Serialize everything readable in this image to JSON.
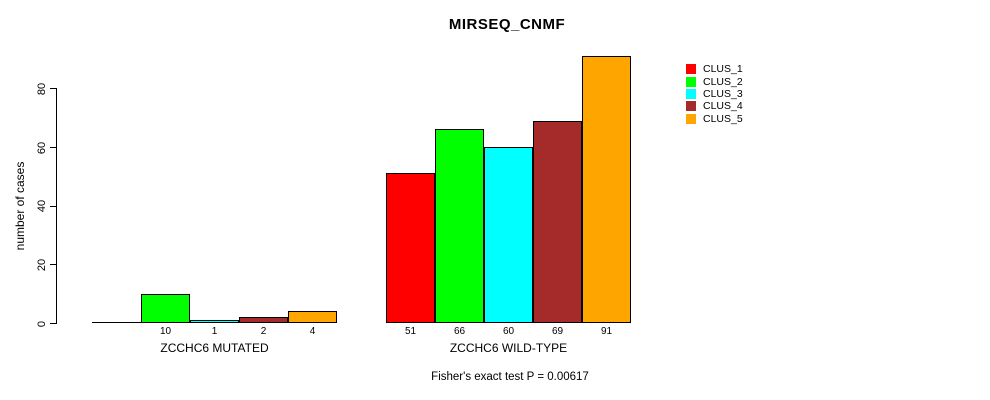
{
  "title": "MIRSEQ_CNMF",
  "chart_data": {
    "type": "bar",
    "title": "MIRSEQ_CNMF",
    "xlabel": "",
    "ylabel": "number of cases",
    "yticks": [
      0,
      20,
      40,
      60,
      80
    ],
    "ylim": [
      0,
      91
    ],
    "grid": false,
    "legend_position": "right",
    "series": [
      {
        "name": "CLUS_1",
        "color": "#ff0000",
        "values": [
          0,
          51
        ]
      },
      {
        "name": "CLUS_2",
        "color": "#00ff00",
        "values": [
          10,
          66
        ]
      },
      {
        "name": "CLUS_3",
        "color": "#00ffff",
        "values": [
          1,
          60
        ]
      },
      {
        "name": "CLUS_4",
        "color": "#a52a2a",
        "values": [
          2,
          69
        ]
      },
      {
        "name": "CLUS_5",
        "color": "#ffa500",
        "values": [
          4,
          91
        ]
      }
    ],
    "groups": [
      {
        "label": "ZCCHC6 MUTATED",
        "values": [
          0,
          10,
          1,
          2,
          4
        ],
        "bar_labels": [
          "",
          "10",
          "1",
          "2",
          "4"
        ]
      },
      {
        "label": "ZCCHC6 WILD-TYPE",
        "values": [
          51,
          66,
          60,
          69,
          91
        ],
        "bar_labels": [
          "51",
          "66",
          "60",
          "69",
          "91"
        ]
      }
    ],
    "annotation": "Fisher's exact test P = 0.00617"
  }
}
